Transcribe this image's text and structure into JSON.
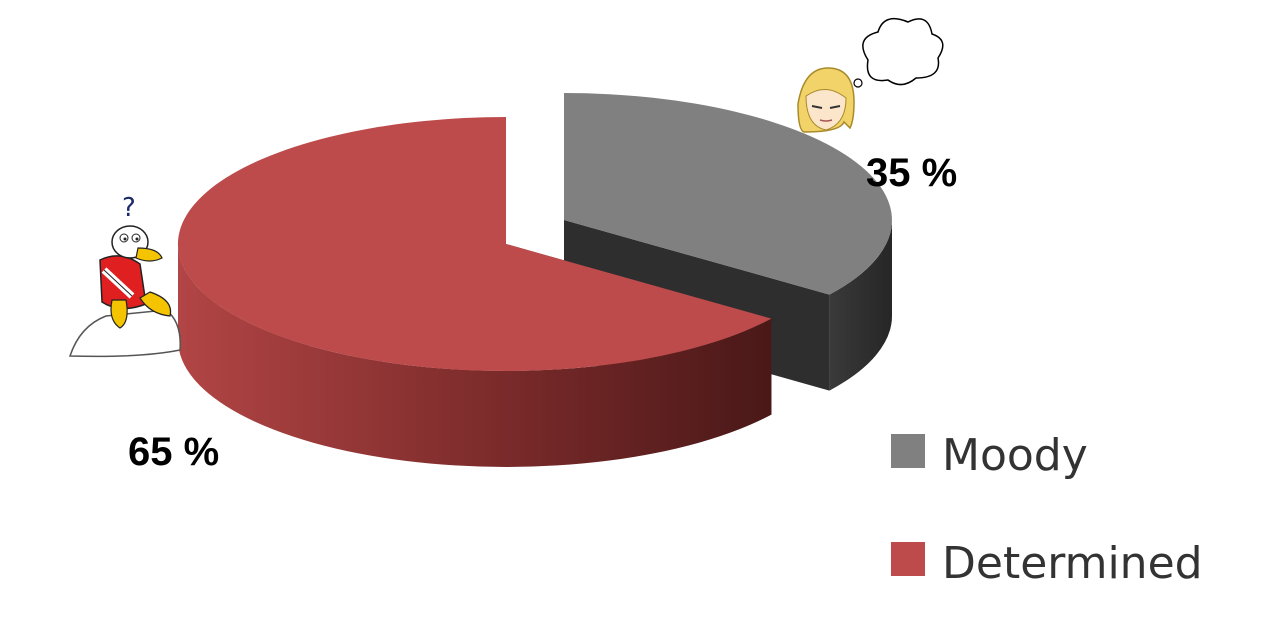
{
  "chart_data": {
    "type": "pie",
    "style": "3d-exploded",
    "slices": [
      {
        "name": "Moody",
        "value": 35,
        "label": "35 %",
        "color": "#808080",
        "side_color": "#303030"
      },
      {
        "name": "Determined",
        "value": 65,
        "label": "65 %",
        "color": "#bd4b4b",
        "side_color": "#6e2424"
      }
    ],
    "legend": {
      "placement": "bottom-right",
      "entries": [
        "Moody",
        "Determined"
      ]
    },
    "decorations": {
      "moody_icon": "thinking-girl-with-thought-bubble-icon",
      "determined_icon": "thinking-duck-with-question-mark-icon",
      "question_mark": "?"
    }
  }
}
